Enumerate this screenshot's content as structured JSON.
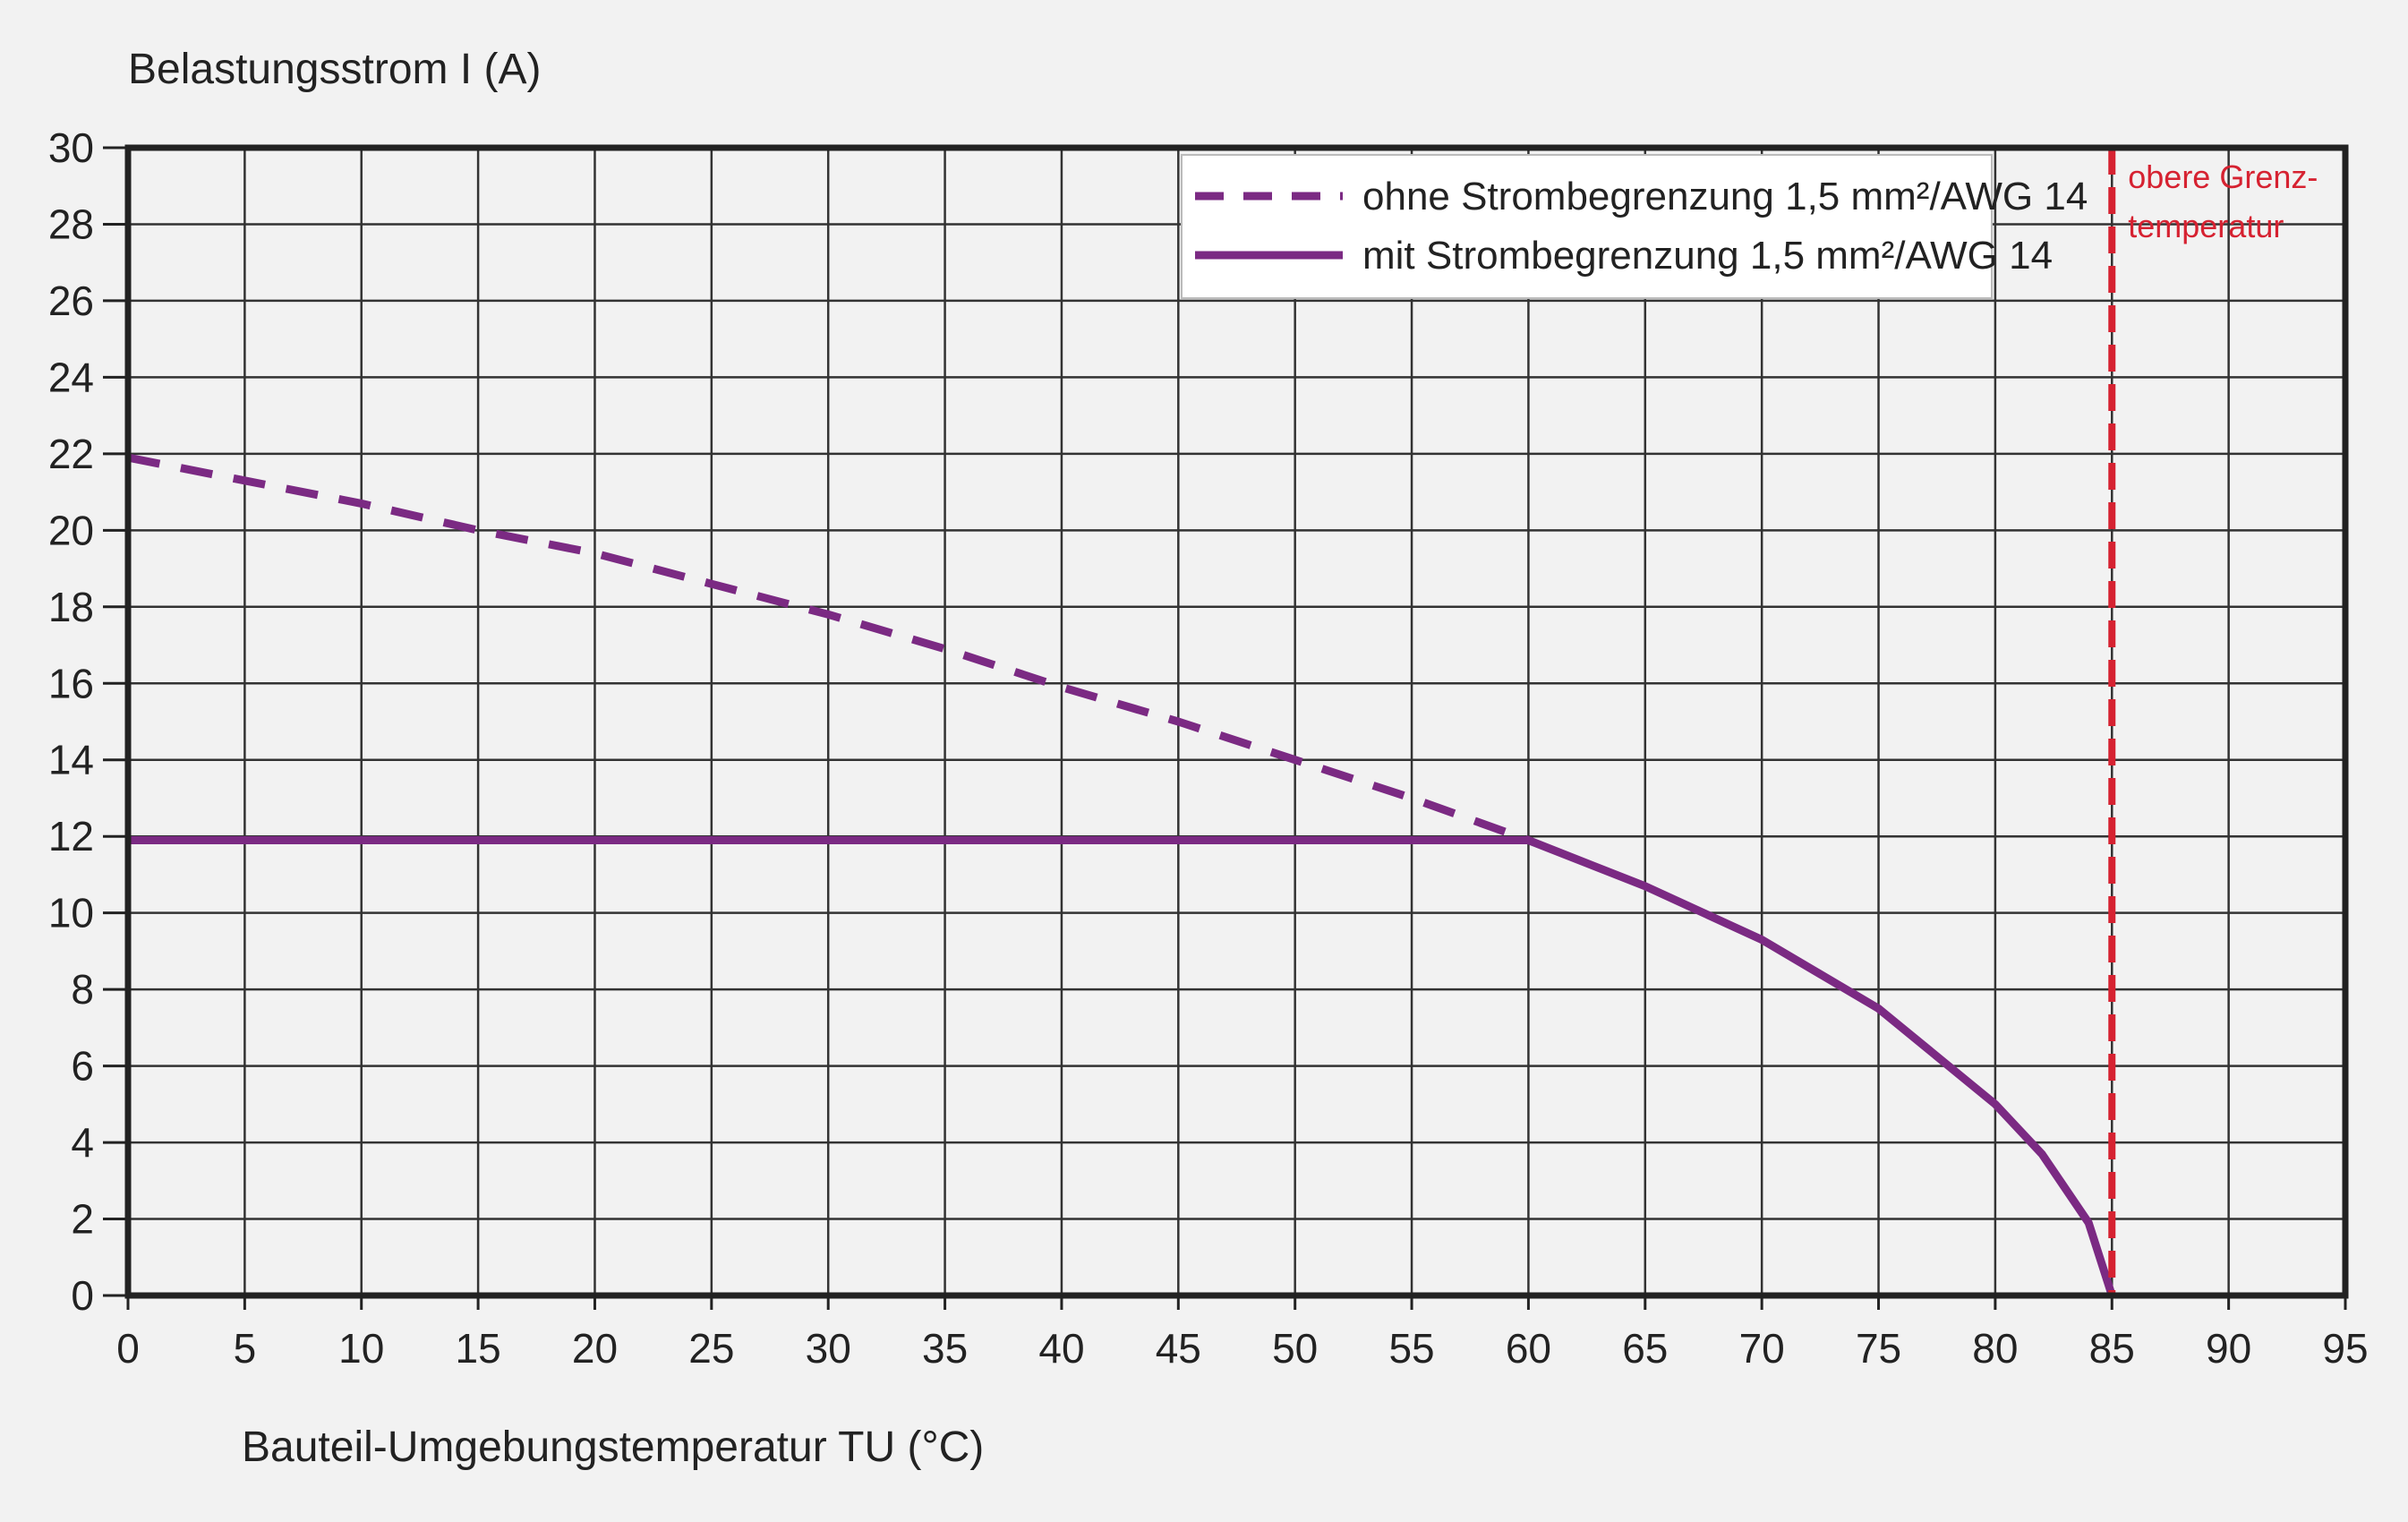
{
  "chart_data": {
    "type": "line",
    "ylabel": "Belastungsstrom I (A)",
    "xlabel": "Bauteil-Umgebungstemperatur TU (°C)",
    "xlim": [
      0,
      95
    ],
    "ylim": [
      0,
      30
    ],
    "xticks": [
      0,
      5,
      10,
      15,
      20,
      25,
      30,
      35,
      40,
      45,
      50,
      55,
      60,
      65,
      70,
      75,
      80,
      85,
      90,
      95
    ],
    "yticks": [
      0,
      2,
      4,
      6,
      8,
      10,
      12,
      14,
      16,
      18,
      20,
      22,
      24,
      26,
      28,
      30
    ],
    "grid": true,
    "legend_position": "top-right",
    "series": [
      {
        "name": "ohne Strombegrenzung 1,5 mm²/AWG 14",
        "style": "dashed",
        "color": "#7b2a83",
        "x": [
          0,
          5,
          10,
          15,
          20,
          25,
          30,
          35,
          40,
          45,
          50,
          55,
          60
        ],
        "y": [
          21.9,
          21.3,
          20.7,
          20.0,
          19.4,
          18.6,
          17.8,
          16.9,
          15.9,
          15.0,
          14.0,
          13.0,
          11.9
        ]
      },
      {
        "name": "mit Strombegrenzung 1,5 mm²/AWG 14",
        "style": "solid",
        "color": "#7b2a83",
        "x": [
          0,
          60,
          65,
          70,
          75,
          80,
          82,
          84,
          85
        ],
        "y": [
          11.9,
          11.9,
          10.7,
          9.3,
          7.5,
          5.0,
          3.7,
          1.9,
          0
        ]
      }
    ],
    "annotations": [
      {
        "text_line1": "obere Grenz-",
        "text_line2": "temperatur",
        "x": 85,
        "color": "#d62231"
      }
    ]
  }
}
